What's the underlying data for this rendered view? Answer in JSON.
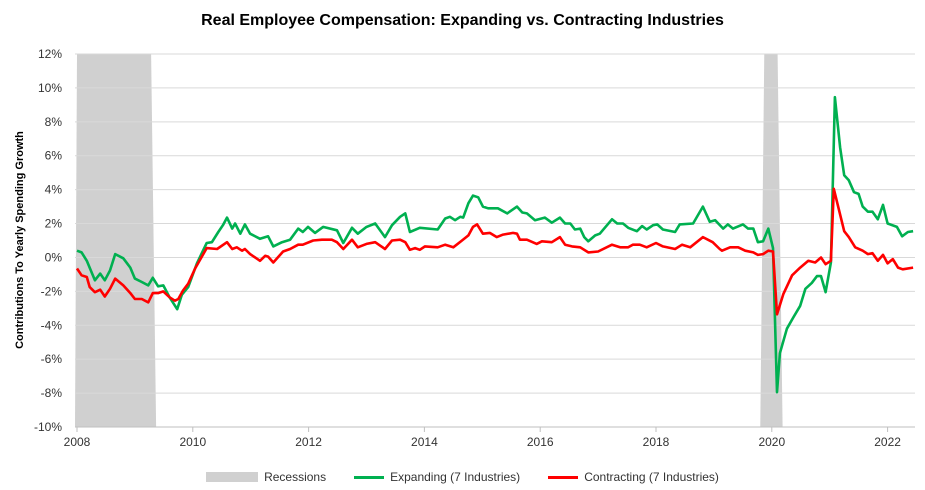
{
  "chart_data": {
    "type": "line",
    "title": "Real Employee Compensation: Expanding vs. Contracting Industries",
    "xlabel": "",
    "ylabel": "Contributions To Yearly Spending Growth",
    "xlim": [
      2008.0,
      2022.5
    ],
    "ylim": [
      -10,
      12
    ],
    "x_ticks": [
      2008,
      2010,
      2012,
      2014,
      2016,
      2018,
      2020,
      2022
    ],
    "y_ticks": [
      -10,
      -8,
      -6,
      -4,
      -2,
      0,
      2,
      4,
      6,
      8,
      10,
      12
    ],
    "y_tick_labels": [
      "-10%",
      "-8%",
      "-6%",
      "-4%",
      "-2%",
      "0%",
      "2%",
      "4%",
      "6%",
      "8%",
      "10%",
      "12%"
    ],
    "grid": "horizontal",
    "legend_position": "bottom",
    "recessions": {
      "name": "Recessions",
      "color": "#d0d0d0",
      "periods": [
        [
          2008.0,
          2009.28
        ],
        [
          2019.87,
          2020.1
        ]
      ]
    },
    "series": [
      {
        "name": "Expanding (7 Industries)",
        "color": "#00b050",
        "points": [
          [
            2008.0,
            0.4
          ],
          [
            2008.08,
            0.3
          ],
          [
            2008.17,
            -0.2
          ],
          [
            2008.31,
            -1.35
          ],
          [
            2008.4,
            -0.95
          ],
          [
            2008.48,
            -1.35
          ],
          [
            2008.57,
            -0.77
          ],
          [
            2008.66,
            0.2
          ],
          [
            2008.8,
            -0.05
          ],
          [
            2008.92,
            -0.6
          ],
          [
            2009.0,
            -1.25
          ],
          [
            2009.12,
            -1.45
          ],
          [
            2009.23,
            -1.65
          ],
          [
            2009.31,
            -1.2
          ],
          [
            2009.4,
            -1.7
          ],
          [
            2009.49,
            -1.65
          ],
          [
            2009.6,
            -2.35
          ],
          [
            2009.73,
            -3.05
          ],
          [
            2009.81,
            -2.2
          ],
          [
            2009.92,
            -1.75
          ],
          [
            2010.07,
            -0.35
          ],
          [
            2010.24,
            0.85
          ],
          [
            2010.33,
            0.9
          ],
          [
            2010.44,
            1.5
          ],
          [
            2010.52,
            1.9
          ],
          [
            2010.59,
            2.35
          ],
          [
            2010.68,
            1.7
          ],
          [
            2010.73,
            2.0
          ],
          [
            2010.82,
            1.4
          ],
          [
            2010.9,
            1.95
          ],
          [
            2010.99,
            1.4
          ],
          [
            2011.16,
            1.1
          ],
          [
            2011.3,
            1.25
          ],
          [
            2011.39,
            0.65
          ],
          [
            2011.54,
            0.9
          ],
          [
            2011.68,
            1.05
          ],
          [
            2011.82,
            1.7
          ],
          [
            2011.9,
            1.5
          ],
          [
            2011.99,
            1.8
          ],
          [
            2012.11,
            1.45
          ],
          [
            2012.25,
            1.8
          ],
          [
            2012.49,
            1.6
          ],
          [
            2012.6,
            0.85
          ],
          [
            2012.75,
            1.75
          ],
          [
            2012.85,
            1.4
          ],
          [
            2013.0,
            1.8
          ],
          [
            2013.15,
            2.0
          ],
          [
            2013.32,
            1.2
          ],
          [
            2013.44,
            1.9
          ],
          [
            2013.58,
            2.4
          ],
          [
            2013.67,
            2.6
          ],
          [
            2013.75,
            1.5
          ],
          [
            2013.92,
            1.75
          ],
          [
            2014.23,
            1.65
          ],
          [
            2014.36,
            2.3
          ],
          [
            2014.44,
            2.4
          ],
          [
            2014.53,
            2.2
          ],
          [
            2014.62,
            2.4
          ],
          [
            2014.67,
            2.35
          ],
          [
            2014.76,
            3.2
          ],
          [
            2014.84,
            3.65
          ],
          [
            2014.93,
            3.55
          ],
          [
            2015.01,
            3.0
          ],
          [
            2015.1,
            2.9
          ],
          [
            2015.27,
            2.9
          ],
          [
            2015.43,
            2.6
          ],
          [
            2015.6,
            3.0
          ],
          [
            2015.69,
            2.65
          ],
          [
            2015.77,
            2.6
          ],
          [
            2015.91,
            2.2
          ],
          [
            2016.08,
            2.35
          ],
          [
            2016.2,
            2.05
          ],
          [
            2016.34,
            2.35
          ],
          [
            2016.43,
            2.0
          ],
          [
            2016.52,
            2.0
          ],
          [
            2016.6,
            1.65
          ],
          [
            2016.69,
            1.7
          ],
          [
            2016.76,
            1.2
          ],
          [
            2016.83,
            0.95
          ],
          [
            2016.95,
            1.3
          ],
          [
            2017.03,
            1.4
          ],
          [
            2017.24,
            2.25
          ],
          [
            2017.33,
            2.0
          ],
          [
            2017.43,
            2.0
          ],
          [
            2017.52,
            1.75
          ],
          [
            2017.67,
            1.55
          ],
          [
            2017.76,
            1.85
          ],
          [
            2017.84,
            1.65
          ],
          [
            2017.95,
            1.9
          ],
          [
            2018.02,
            1.95
          ],
          [
            2018.12,
            1.65
          ],
          [
            2018.33,
            1.5
          ],
          [
            2018.41,
            1.95
          ],
          [
            2018.64,
            2.0
          ],
          [
            2018.81,
            3.0
          ],
          [
            2018.93,
            2.1
          ],
          [
            2019.02,
            2.2
          ],
          [
            2019.16,
            1.7
          ],
          [
            2019.24,
            1.95
          ],
          [
            2019.33,
            1.7
          ],
          [
            2019.5,
            1.95
          ],
          [
            2019.59,
            1.7
          ],
          [
            2019.68,
            1.7
          ],
          [
            2019.76,
            0.9
          ],
          [
            2019.85,
            0.95
          ],
          [
            2019.94,
            1.7
          ],
          [
            2020.02,
            0.55
          ],
          [
            2020.09,
            -7.95
          ],
          [
            2020.14,
            -5.65
          ],
          [
            2020.26,
            -4.2
          ],
          [
            2020.37,
            -3.55
          ],
          [
            2020.49,
            -2.85
          ],
          [
            2020.58,
            -1.85
          ],
          [
            2020.69,
            -1.5
          ],
          [
            2020.78,
            -1.1
          ],
          [
            2020.85,
            -1.1
          ],
          [
            2020.93,
            -2.05
          ],
          [
            2021.02,
            -0.3
          ],
          [
            2021.09,
            9.45
          ],
          [
            2021.18,
            6.5
          ],
          [
            2021.25,
            4.85
          ],
          [
            2021.33,
            4.55
          ],
          [
            2021.42,
            3.85
          ],
          [
            2021.5,
            3.75
          ],
          [
            2021.57,
            3.0
          ],
          [
            2021.66,
            2.7
          ],
          [
            2021.74,
            2.7
          ],
          [
            2021.83,
            2.25
          ],
          [
            2021.92,
            3.1
          ],
          [
            2022.0,
            2.0
          ],
          [
            2022.16,
            1.8
          ],
          [
            2022.25,
            1.25
          ],
          [
            2022.35,
            1.5
          ],
          [
            2022.44,
            1.55
          ]
        ]
      },
      {
        "name": "Contracting (7 Industries)",
        "color": "#ff0000",
        "points": [
          [
            2008.0,
            -0.65
          ],
          [
            2008.08,
            -1.05
          ],
          [
            2008.17,
            -1.15
          ],
          [
            2008.22,
            -1.75
          ],
          [
            2008.31,
            -2.05
          ],
          [
            2008.4,
            -1.9
          ],
          [
            2008.48,
            -2.3
          ],
          [
            2008.57,
            -1.85
          ],
          [
            2008.66,
            -1.25
          ],
          [
            2008.8,
            -1.65
          ],
          [
            2008.92,
            -2.1
          ],
          [
            2009.0,
            -2.45
          ],
          [
            2009.12,
            -2.45
          ],
          [
            2009.23,
            -2.65
          ],
          [
            2009.31,
            -2.1
          ],
          [
            2009.4,
            -2.1
          ],
          [
            2009.49,
            -2.0
          ],
          [
            2009.6,
            -2.35
          ],
          [
            2009.69,
            -2.55
          ],
          [
            2009.75,
            -2.45
          ],
          [
            2009.83,
            -1.95
          ],
          [
            2009.92,
            -1.55
          ],
          [
            2010.04,
            -0.65
          ],
          [
            2010.24,
            0.55
          ],
          [
            2010.42,
            0.5
          ],
          [
            2010.59,
            0.9
          ],
          [
            2010.68,
            0.5
          ],
          [
            2010.76,
            0.6
          ],
          [
            2010.85,
            0.4
          ],
          [
            2010.9,
            0.5
          ],
          [
            2010.99,
            0.2
          ],
          [
            2011.16,
            -0.2
          ],
          [
            2011.25,
            0.1
          ],
          [
            2011.3,
            0.05
          ],
          [
            2011.39,
            -0.3
          ],
          [
            2011.56,
            0.35
          ],
          [
            2011.68,
            0.5
          ],
          [
            2011.82,
            0.75
          ],
          [
            2011.9,
            0.75
          ],
          [
            2012.08,
            1.0
          ],
          [
            2012.23,
            1.05
          ],
          [
            2012.4,
            1.05
          ],
          [
            2012.49,
            0.9
          ],
          [
            2012.6,
            0.5
          ],
          [
            2012.75,
            1.05
          ],
          [
            2012.85,
            0.6
          ],
          [
            2013.0,
            0.8
          ],
          [
            2013.15,
            0.9
          ],
          [
            2013.32,
            0.5
          ],
          [
            2013.44,
            1.0
          ],
          [
            2013.58,
            1.05
          ],
          [
            2013.67,
            0.9
          ],
          [
            2013.75,
            0.45
          ],
          [
            2013.84,
            0.55
          ],
          [
            2013.92,
            0.45
          ],
          [
            2014.01,
            0.65
          ],
          [
            2014.23,
            0.6
          ],
          [
            2014.36,
            0.75
          ],
          [
            2014.5,
            0.6
          ],
          [
            2014.65,
            1.0
          ],
          [
            2014.76,
            1.3
          ],
          [
            2014.84,
            1.8
          ],
          [
            2014.91,
            1.95
          ],
          [
            2015.01,
            1.4
          ],
          [
            2015.13,
            1.45
          ],
          [
            2015.25,
            1.2
          ],
          [
            2015.36,
            1.35
          ],
          [
            2015.53,
            1.45
          ],
          [
            2015.6,
            1.4
          ],
          [
            2015.65,
            1.05
          ],
          [
            2015.77,
            1.05
          ],
          [
            2015.94,
            0.8
          ],
          [
            2016.03,
            0.95
          ],
          [
            2016.2,
            0.9
          ],
          [
            2016.34,
            1.2
          ],
          [
            2016.43,
            0.75
          ],
          [
            2016.55,
            0.65
          ],
          [
            2016.69,
            0.6
          ],
          [
            2016.83,
            0.3
          ],
          [
            2017.0,
            0.35
          ],
          [
            2017.24,
            0.75
          ],
          [
            2017.38,
            0.6
          ],
          [
            2017.52,
            0.6
          ],
          [
            2017.6,
            0.75
          ],
          [
            2017.72,
            0.75
          ],
          [
            2017.84,
            0.6
          ],
          [
            2018.0,
            0.85
          ],
          [
            2018.12,
            0.65
          ],
          [
            2018.33,
            0.5
          ],
          [
            2018.45,
            0.75
          ],
          [
            2018.59,
            0.6
          ],
          [
            2018.81,
            1.2
          ],
          [
            2018.98,
            0.9
          ],
          [
            2019.1,
            0.5
          ],
          [
            2019.14,
            0.4
          ],
          [
            2019.28,
            0.6
          ],
          [
            2019.42,
            0.6
          ],
          [
            2019.54,
            0.4
          ],
          [
            2019.68,
            0.3
          ],
          [
            2019.76,
            0.15
          ],
          [
            2019.85,
            0.2
          ],
          [
            2019.94,
            0.4
          ],
          [
            2020.02,
            0.35
          ],
          [
            2020.09,
            -3.35
          ],
          [
            2020.2,
            -2.15
          ],
          [
            2020.35,
            -1.05
          ],
          [
            2020.49,
            -0.6
          ],
          [
            2020.63,
            -0.2
          ],
          [
            2020.75,
            -0.3
          ],
          [
            2020.85,
            0.0
          ],
          [
            2020.93,
            -0.4
          ],
          [
            2021.02,
            -0.2
          ],
          [
            2021.07,
            4.05
          ],
          [
            2021.25,
            1.55
          ],
          [
            2021.33,
            1.2
          ],
          [
            2021.44,
            0.6
          ],
          [
            2021.57,
            0.4
          ],
          [
            2021.66,
            0.2
          ],
          [
            2021.74,
            0.25
          ],
          [
            2021.83,
            -0.2
          ],
          [
            2021.92,
            0.15
          ],
          [
            2022.0,
            -0.35
          ],
          [
            2022.09,
            -0.1
          ],
          [
            2022.18,
            -0.6
          ],
          [
            2022.26,
            -0.7
          ],
          [
            2022.44,
            -0.6
          ]
        ]
      }
    ]
  }
}
